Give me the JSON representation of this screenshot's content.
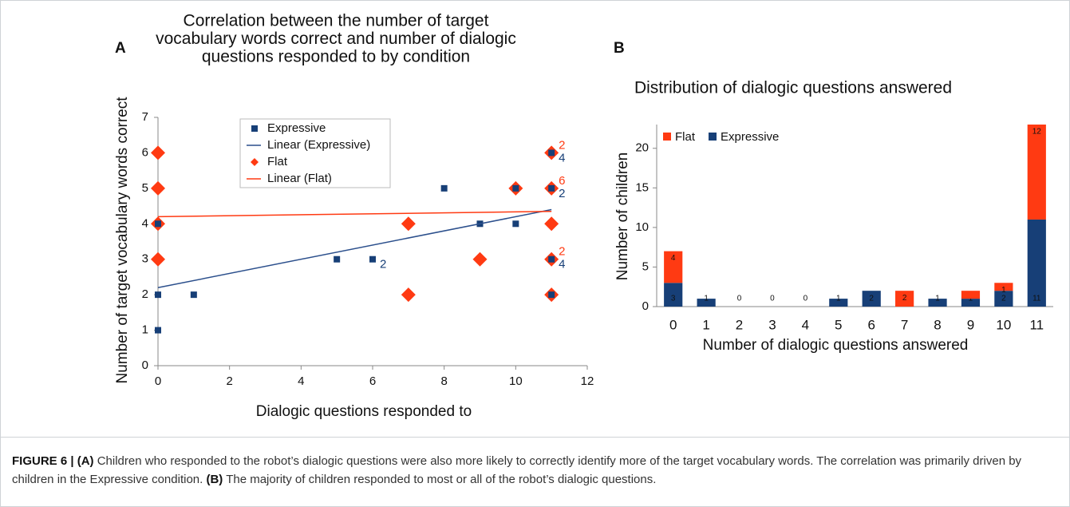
{
  "chart_data": [
    {
      "type": "scatter",
      "panel": "A",
      "title": [
        "Correlation between the number of target",
        "vocabulary words correct and number of dialogic",
        "questions responded to by condition"
      ],
      "xlabel": "Dialogic questions responded to",
      "ylabel": "Number of target vocabulary words correct",
      "xlim": [
        0,
        12
      ],
      "xticks": [
        0,
        2,
        4,
        6,
        8,
        10,
        12
      ],
      "ylim": [
        0,
        7
      ],
      "yticks": [
        0,
        1,
        2,
        3,
        4,
        5,
        6,
        7
      ],
      "series": [
        {
          "name": "Expressive",
          "color": "#173f77",
          "marker": "square",
          "x": [
            0,
            0,
            0,
            1,
            5,
            6,
            8,
            9,
            10,
            10,
            11,
            11,
            11,
            11
          ],
          "values": [
            4,
            2,
            1,
            2,
            3,
            3,
            5,
            4,
            4,
            5,
            6,
            5,
            3,
            2
          ],
          "point_labels": [
            null,
            null,
            null,
            null,
            null,
            "2",
            null,
            null,
            null,
            null,
            "4",
            "2",
            "4",
            null
          ]
        },
        {
          "name": "Linear (Expressive)",
          "color": "#2b4f8c",
          "marker": "line",
          "x": [
            0,
            11
          ],
          "values": [
            2.2,
            4.4
          ]
        },
        {
          "name": "Flat",
          "color": "#ff3a12",
          "marker": "diamond",
          "x": [
            0,
            0,
            0,
            0,
            7,
            7,
            9,
            10,
            11,
            11,
            11,
            11,
            11
          ],
          "values": [
            6,
            5,
            4,
            3,
            4,
            2,
            3,
            5,
            6,
            5,
            4,
            3,
            2
          ],
          "point_labels": [
            null,
            null,
            null,
            null,
            null,
            null,
            null,
            null,
            "2",
            "6",
            null,
            "2",
            null
          ]
        },
        {
          "name": "Linear (Flat)",
          "color": "#ff3a12",
          "marker": "line",
          "x": [
            0,
            11
          ],
          "values": [
            4.2,
            4.35
          ]
        }
      ]
    },
    {
      "type": "stacked_bar",
      "panel": "B",
      "title": "Distribution of dialogic questions answered",
      "xlabel": "Number of dialogic questions answered",
      "ylabel": "Number of children",
      "categories": [
        "0",
        "1",
        "2",
        "3",
        "4",
        "5",
        "6",
        "7",
        "8",
        "9",
        "10",
        "11"
      ],
      "ylim": [
        0,
        23
      ],
      "yticks": [
        0,
        5,
        10,
        15,
        20
      ],
      "legend_order": [
        1,
        0
      ],
      "series": [
        {
          "name": "Expressive",
          "color": "#173f77",
          "values": [
            3,
            1,
            0,
            0,
            0,
            1,
            2,
            0,
            1,
            1,
            2,
            11
          ],
          "value_labels": [
            "3",
            "1",
            "0",
            "0",
            "0",
            "1",
            "2",
            "0",
            "1",
            "1",
            "2",
            "11"
          ]
        },
        {
          "name": "Flat",
          "color": "#ff3a12",
          "values": [
            4,
            0,
            0,
            0,
            0,
            0,
            0,
            2,
            0,
            1,
            1,
            12
          ],
          "value_labels": [
            "4",
            null,
            null,
            null,
            null,
            null,
            null,
            "2",
            null,
            null,
            "1",
            "12"
          ]
        }
      ]
    }
  ],
  "caption": {
    "label": "FIGURE 6 |",
    "a_tag": "(A)",
    "a_text": "Children who responded to the robot’s dialogic questions were also more likely to correctly identify more of the target vocabulary words. The correlation was primarily driven by children in the Expressive condition.",
    "b_tag": "(B)",
    "b_text": "The majority of children responded to most or all of the robot’s dialogic questions."
  }
}
